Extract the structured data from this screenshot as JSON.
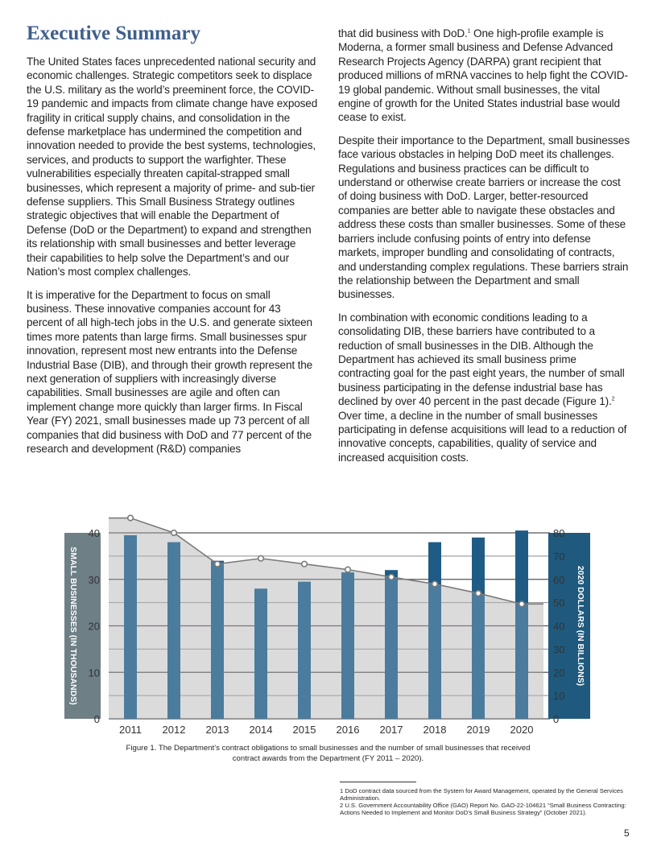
{
  "title": "Executive Summary",
  "left_column": [
    "The United States faces unprecedented national security and economic challenges. Strategic competitors seek to displace the U.S. military as the world’s preeminent force, the COVID-19 pandemic and impacts from climate change have exposed fragility in critical supply chains, and consolidation in the defense marketplace has undermined the competition and innovation needed to provide the best systems, technologies, services, and products to support the warfighter. These vulnerabilities especially threaten capital-strapped small businesses, which represent a majority of prime- and sub-tier defense suppliers. This Small Business Strategy outlines strategic objectives that will enable the Department of Defense (DoD or the Department) to expand and strengthen its relationship with small businesses and better leverage their capabilities to help solve the Department’s and our Nation’s most complex challenges.",
    "It is imperative for the Department to focus on small business. These innovative companies account for 43 percent of all high-tech jobs in the U.S. and generate sixteen times more patents than large firms. Small businesses spur innovation, represent most new entrants into the Defense Industrial Base (DIB), and through their growth represent the next generation of suppliers with increasingly diverse capabilities. Small businesses are agile and often can implement change more quickly than larger firms. In Fiscal Year (FY) 2021, small businesses made up 73 percent of all companies that did business with DoD and 77 percent of the research and development (R&D) companies"
  ],
  "right_column": {
    "p1_a": "that did business with DoD.",
    "p1_sup": "1",
    "p1_b": " One high-profile example is Moderna, a former small business and Defense Advanced Research Projects Agency (DARPA) grant recipient that produced millions of mRNA vaccines to help fight the COVID-19 global pandemic. Without small businesses, the vital engine of growth for the United States industrial base would cease to exist.",
    "p2": "Despite their importance to the Department, small businesses face various obstacles in helping DoD meet its challenges. Regulations and business practices can be difficult to understand or otherwise create barriers or increase the cost of doing business with DoD. Larger, better-resourced companies are better able to navigate these obstacles and address these costs than smaller businesses. Some of these barriers include confusing points of entry into defense markets, improper bundling and consolidating of contracts, and understanding complex regulations. These barriers strain the relationship between the Department and small businesses.",
    "p3_a": "In combination with economic conditions leading to a consolidating DIB, these barriers have contributed to a reduction of small businesses in the DIB. Although the Department has achieved its small business prime contracting goal for the past eight years, the number of small business participating in the defense industrial base has declined by over 40 percent in the past decade (Figure 1).",
    "p3_sup": "2",
    "p3_b": " Over time, a decline in the number of small businesses participating in defense acquisitions will lead to a reduction of innovative concepts, capabilities, quality of service and increased acquisition costs."
  },
  "chart_data": {
    "type": "bar+line",
    "categories": [
      "2011",
      "2012",
      "2013",
      "2014",
      "2015",
      "2016",
      "2017",
      "2018",
      "2019",
      "2020"
    ],
    "series": [
      {
        "name": "Contract obligations (2020 dollars, billions)",
        "type": "bar",
        "axis": "right",
        "values": [
          79,
          76,
          68,
          56,
          59,
          63,
          64,
          76,
          78,
          81
        ]
      },
      {
        "name": "Small businesses (thousands)",
        "type": "line",
        "axis": "left",
        "values": [
          43.2,
          40,
          33.3,
          34.5,
          33.3,
          32.1,
          30.5,
          29,
          27,
          24.7
        ]
      }
    ],
    "ylabel": "SMALL BUSINESSES (IN THOUSANDS)",
    "y2label": "2020 DOLLARS (IN BILLIONS)",
    "ylim": [
      0,
      40
    ],
    "y2lim": [
      0,
      80
    ],
    "yticks": [
      "0",
      "10",
      "20",
      "30",
      "40"
    ],
    "y2ticks": [
      "0",
      "10",
      "20",
      "30",
      "40",
      "50",
      "60",
      "70",
      "80"
    ],
    "colors": {
      "bar": "#1f5c85",
      "area": "#d4d2d4",
      "line": "#7a7a7a",
      "left_label_bg": "#6e7f86",
      "right_label_bg": "#1f5a7e"
    }
  },
  "caption": "Figure 1. The Department’s contract obligations to small businesses and the number of small businesses that received contract awards from the Department (FY 2011 – 2020).",
  "footnotes": [
    "1  DoD contract data sourced from the System for Award Management, operated by the General Services Administration.",
    "2  U.S. Government Accountability Office (GAO) Report No. GAO-22-104621 “Small Business Contracting: Actions Needed to Implement and Monitor DoD’s Small Business Strategy” (October 2021)."
  ],
  "page_number": "5"
}
